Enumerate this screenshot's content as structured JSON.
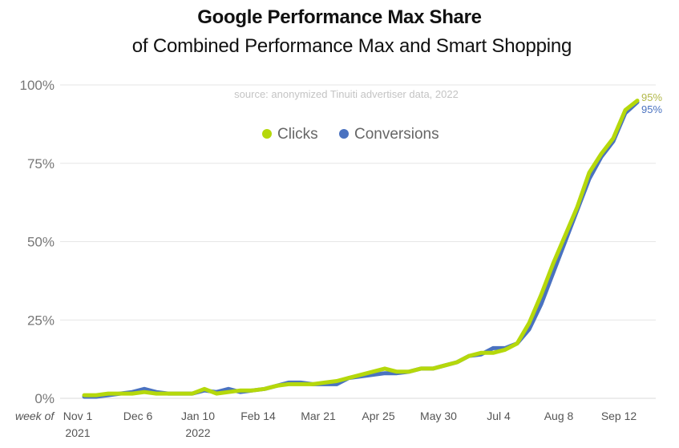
{
  "title": "Google Performance Max Share",
  "subtitle": "of Combined Performance Max and Smart Shopping",
  "source": "source: anonymized Tinuiti advertiser data, 2022",
  "colors": {
    "clicks": "#b5d80b",
    "conversions": "#4a72c0",
    "grid": "#e6e6e6",
    "clicks_label": "#b2b84a",
    "conversions_label": "#4a72c0"
  },
  "chart_data": {
    "type": "line",
    "title": "Google Performance Max Share",
    "subtitle": "of Combined Performance Max and Smart Shopping",
    "xlabel": "week of",
    "ylim": [
      0,
      100
    ],
    "y_ticks": [
      {
        "value": 0,
        "label": "0%"
      },
      {
        "value": 25,
        "label": "25%"
      },
      {
        "value": 50,
        "label": "50%"
      },
      {
        "value": 75,
        "label": "75%"
      },
      {
        "value": 100,
        "label": "100%"
      }
    ],
    "x_ticks": [
      {
        "index": 0,
        "label": "Nov 1",
        "sublabel": "2021"
      },
      {
        "index": 5,
        "label": "Dec 6",
        "sublabel": ""
      },
      {
        "index": 10,
        "label": "Jan 10",
        "sublabel": "2022"
      },
      {
        "index": 15,
        "label": "Feb 14",
        "sublabel": ""
      },
      {
        "index": 20,
        "label": "Mar 21",
        "sublabel": ""
      },
      {
        "index": 25,
        "label": "Apr 25",
        "sublabel": ""
      },
      {
        "index": 30,
        "label": "May 30",
        "sublabel": ""
      },
      {
        "index": 35,
        "label": "Jul 4",
        "sublabel": ""
      },
      {
        "index": 40,
        "label": "Aug 8",
        "sublabel": ""
      },
      {
        "index": 45,
        "label": "Sep 12",
        "sublabel": ""
      }
    ],
    "grid": true,
    "legend": "top-center",
    "series": [
      {
        "name": "Conversions",
        "values": [
          0.5,
          0.5,
          1,
          1.5,
          2,
          3,
          2,
          1.5,
          1.5,
          1.5,
          2.5,
          2,
          3,
          2,
          2.5,
          3,
          4,
          5,
          5,
          4.5,
          4.5,
          4.5,
          6.5,
          7,
          7.5,
          8,
          8,
          8.5,
          9.5,
          9.5,
          10.5,
          11.5,
          13.5,
          14,
          16,
          16,
          17.5,
          22,
          30,
          40,
          50,
          60,
          70,
          77,
          82,
          91,
          94.5
        ],
        "end_label": "95%"
      },
      {
        "name": "Clicks",
        "values": [
          1,
          1,
          1.5,
          1.5,
          1.5,
          2,
          1.5,
          1.5,
          1.5,
          1.5,
          3,
          1.5,
          2,
          2.5,
          2.5,
          3,
          4,
          4.5,
          4.5,
          4.5,
          5,
          5.5,
          6.5,
          7.5,
          8.5,
          9.5,
          8.5,
          8.5,
          9.5,
          9.5,
          10.5,
          11.5,
          13.5,
          14.5,
          14.5,
          15.5,
          17.5,
          24,
          33,
          43,
          52,
          61,
          72,
          78,
          83,
          92,
          95
        ],
        "end_label": "95%"
      }
    ]
  }
}
